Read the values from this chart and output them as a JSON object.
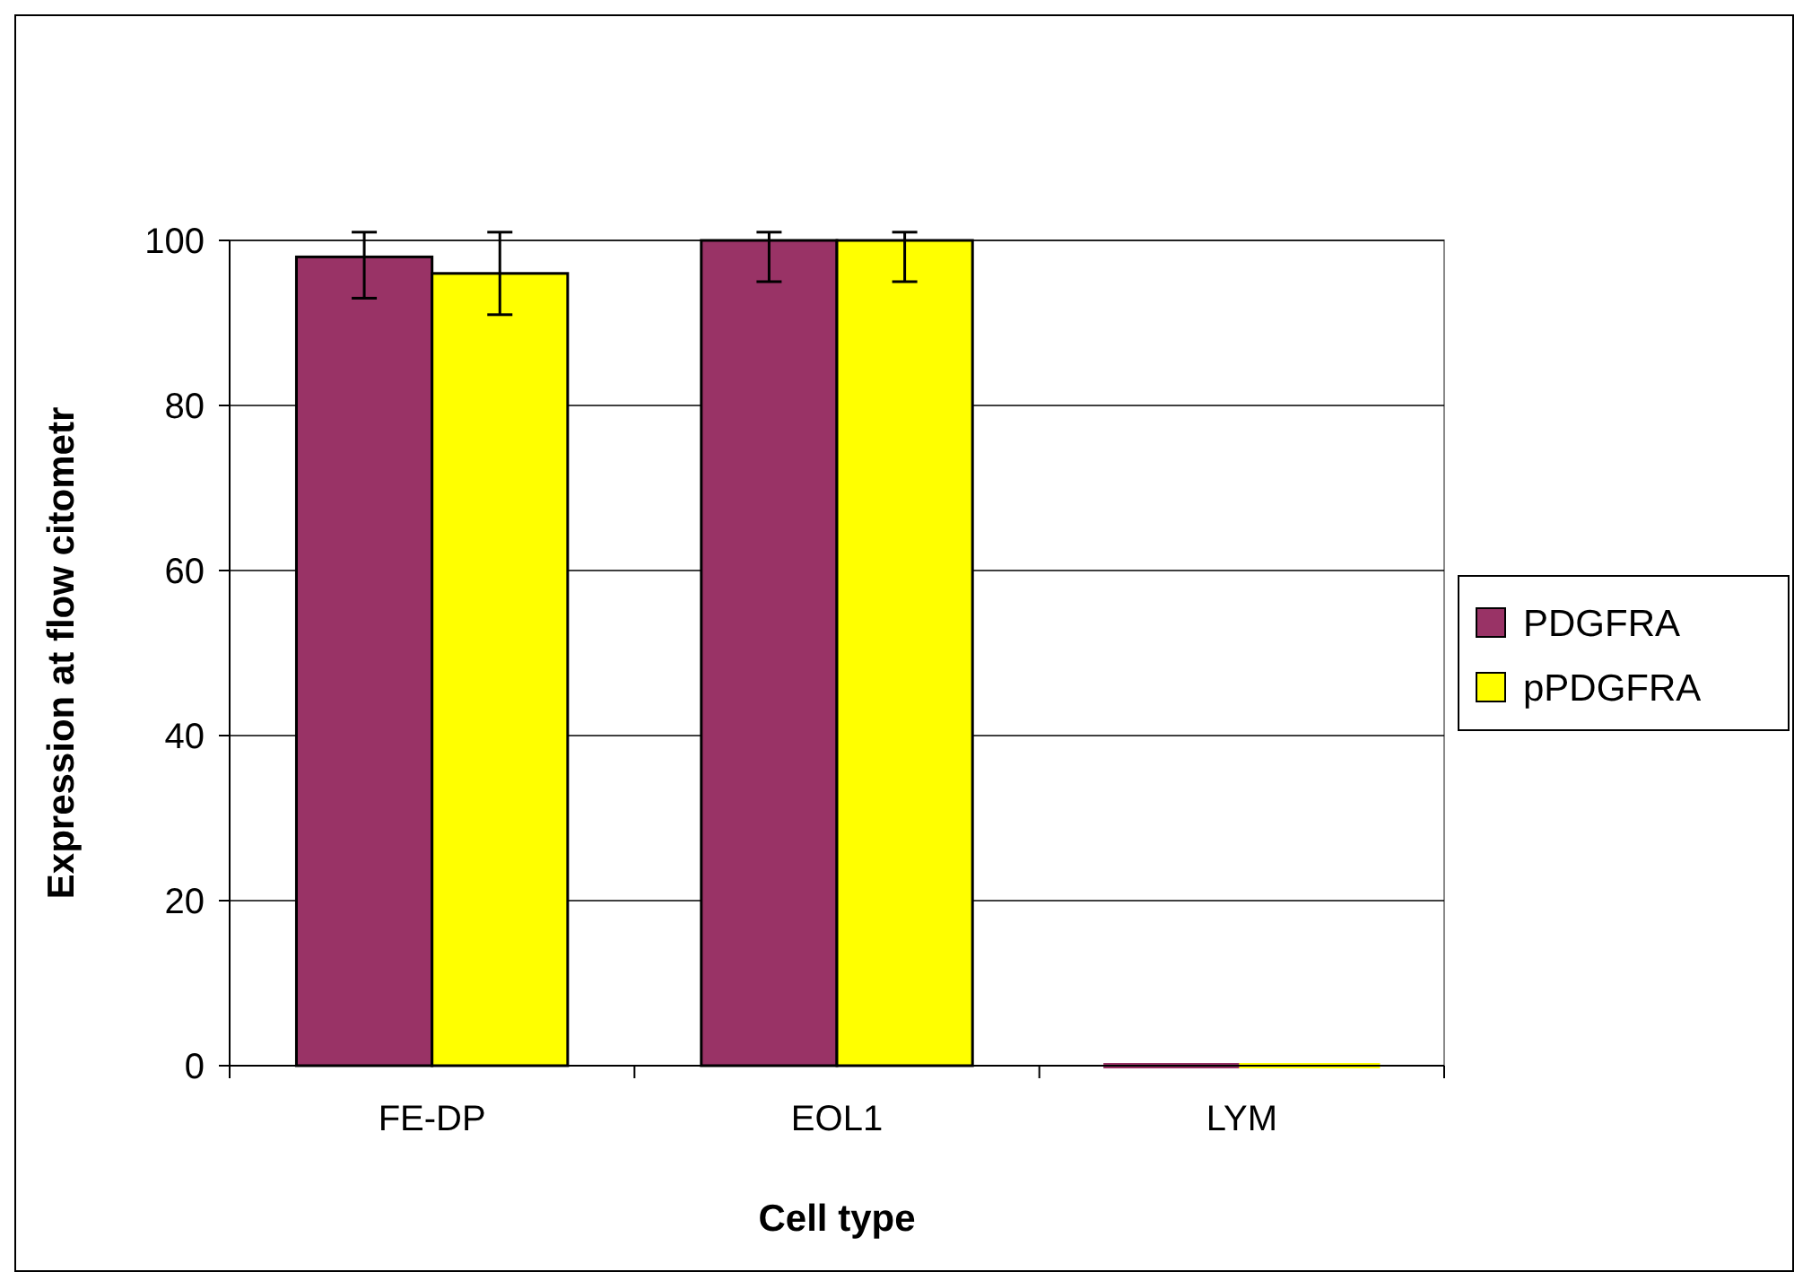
{
  "chart_data": {
    "type": "bar",
    "xlabel": "Cell type",
    "ylabel": "Expression at flow citometr",
    "categories": [
      "FE-DP",
      "EOL1",
      "LYM"
    ],
    "series": [
      {
        "name": "PDGFRA",
        "color": "#993366",
        "values": [
          98,
          100,
          0
        ],
        "errors": [
          [
            93,
            101
          ],
          [
            95,
            101
          ],
          null
        ]
      },
      {
        "name": "pPDGFRA",
        "color": "#ffff00",
        "values": [
          96,
          100,
          0
        ],
        "errors": [
          [
            91,
            101
          ],
          [
            95,
            101
          ],
          null
        ]
      }
    ],
    "ylim": [
      0,
      100
    ],
    "yticks": [
      0,
      20,
      40,
      60,
      80,
      100
    ],
    "grid": "y",
    "legend": "right"
  }
}
